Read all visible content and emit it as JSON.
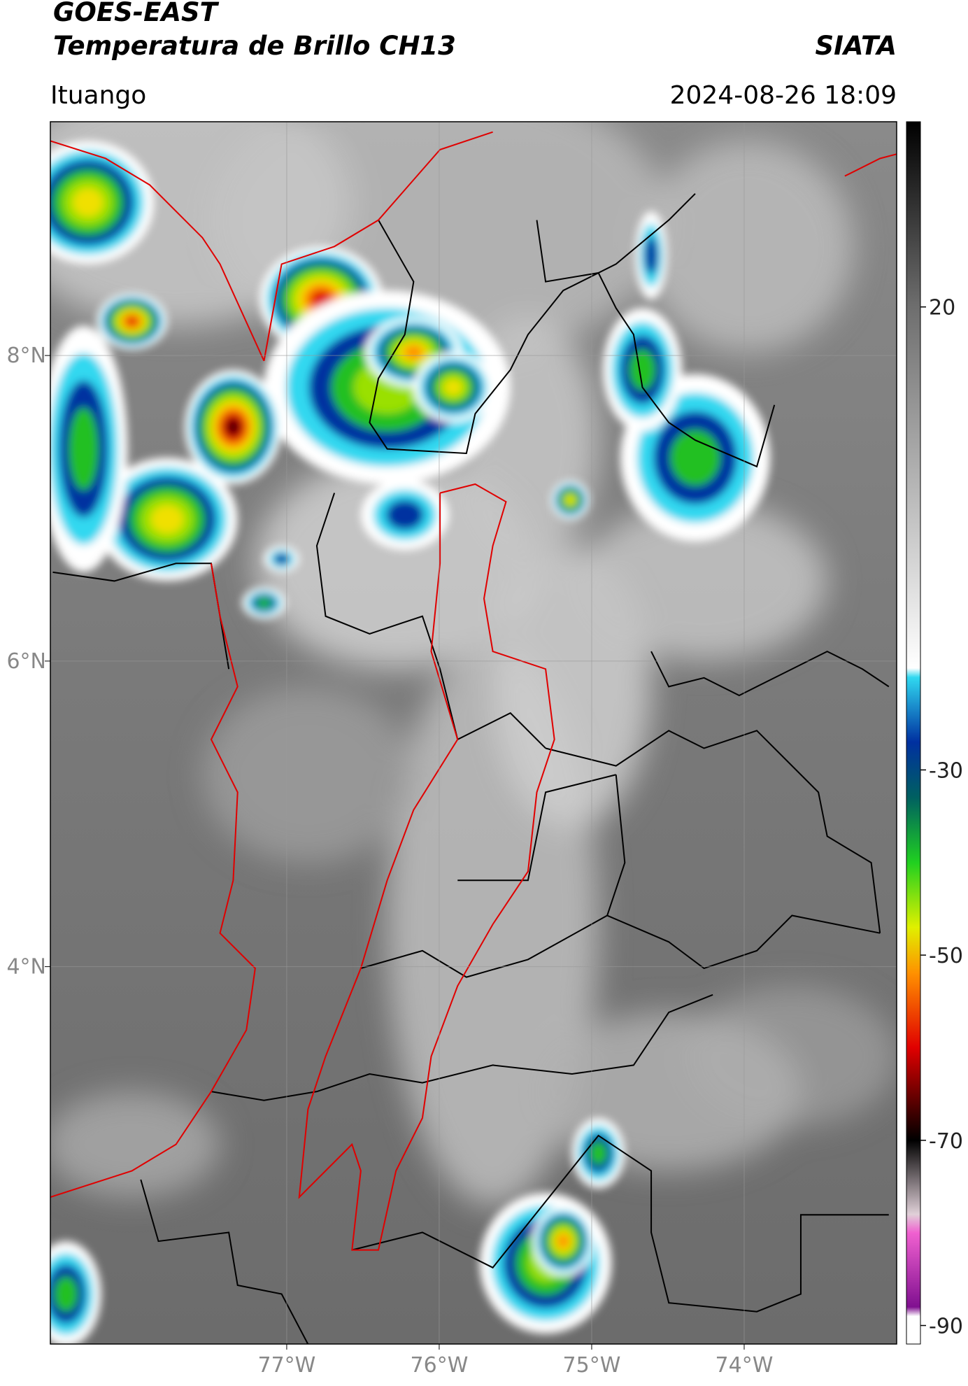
{
  "header": {
    "title": "GOES-EAST",
    "subtitle": "Temperatura de Brillo CH13",
    "brand": "SIATA",
    "location": "Ituango",
    "datetime": "2024-08-26 18:09"
  },
  "map": {
    "xlim": [
      -78.55,
      -73.0
    ],
    "ylim": [
      1.53,
      9.53
    ],
    "xticks": [
      {
        "value": -77,
        "label": "77°W"
      },
      {
        "value": -76,
        "label": "76°W"
      },
      {
        "value": -75,
        "label": "75°W"
      },
      {
        "value": -74,
        "label": "74°W"
      }
    ],
    "yticks": [
      {
        "value": 8,
        "label": "8°N"
      },
      {
        "value": 6,
        "label": "6°N"
      },
      {
        "value": 4,
        "label": "4°N"
      }
    ],
    "grid": true
  },
  "colorbar": {
    "range": [
      -92,
      40
    ],
    "ticks": [
      20,
      -30,
      -50,
      -70,
      -90
    ],
    "stops": [
      {
        "value": 40,
        "color": "#000000"
      },
      {
        "value": 20,
        "color": "#6e6e6e"
      },
      {
        "value": -19,
        "color": "#ffffff"
      },
      {
        "value": -20,
        "color": "#30d8f0"
      },
      {
        "value": -27,
        "color": "#0030a0"
      },
      {
        "value": -33,
        "color": "#006060"
      },
      {
        "value": -40,
        "color": "#20d020"
      },
      {
        "value": -47,
        "color": "#e0f000"
      },
      {
        "value": -52,
        "color": "#ff9000"
      },
      {
        "value": -60,
        "color": "#e00000"
      },
      {
        "value": -67,
        "color": "#400000"
      },
      {
        "value": -70,
        "color": "#000000"
      },
      {
        "value": -78,
        "color": "#e0d0d8"
      },
      {
        "value": -80,
        "color": "#f060d0"
      },
      {
        "value": -88,
        "color": "#801090"
      },
      {
        "value": -89,
        "color": "#ffffff"
      }
    ]
  }
}
